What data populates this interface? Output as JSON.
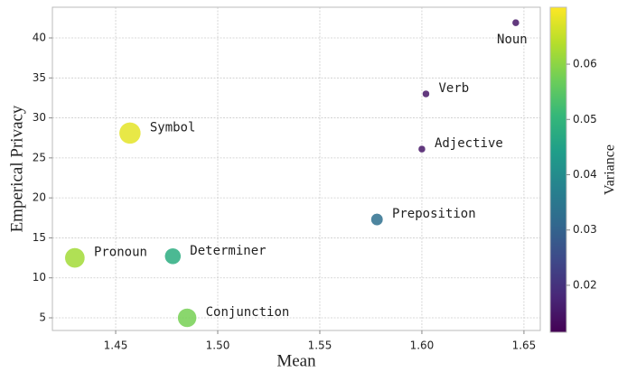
{
  "chart_data": {
    "type": "scatter",
    "xlabel": "Mean",
    "ylabel": "Emperical Privacy",
    "colorbar_label": "Variance",
    "colormap": "viridis",
    "categories": [
      "Noun",
      "Verb",
      "Adjective",
      "Symbol",
      "Preposition",
      "Pronoun",
      "Determiner",
      "Conjunction"
    ],
    "x": [
      1.646,
      1.602,
      1.6,
      1.457,
      1.578,
      1.43,
      1.478,
      1.485
    ],
    "values": [
      41.9,
      33.0,
      26.1,
      28.1,
      17.3,
      12.5,
      12.7,
      5.0
    ],
    "variance": [
      0.015,
      0.015,
      0.015,
      0.068,
      0.033,
      0.062,
      0.048,
      0.058
    ],
    "xlim": [
      1.419,
      1.658
    ],
    "xticks": [
      {
        "value": 1.45,
        "label": "1.45"
      },
      {
        "value": 1.5,
        "label": "1.50"
      },
      {
        "value": 1.55,
        "label": "1.55"
      },
      {
        "value": 1.6,
        "label": "1.60"
      },
      {
        "value": 1.65,
        "label": "1.65"
      }
    ],
    "ylim": [
      3.42,
      43.84
    ],
    "yticks": [
      5,
      10,
      15,
      20,
      25,
      30,
      35,
      40
    ],
    "clim": [
      0.0115,
      0.0703
    ],
    "cticks": [
      0.02,
      0.03,
      0.04,
      0.05,
      0.06
    ],
    "grid": true
  }
}
